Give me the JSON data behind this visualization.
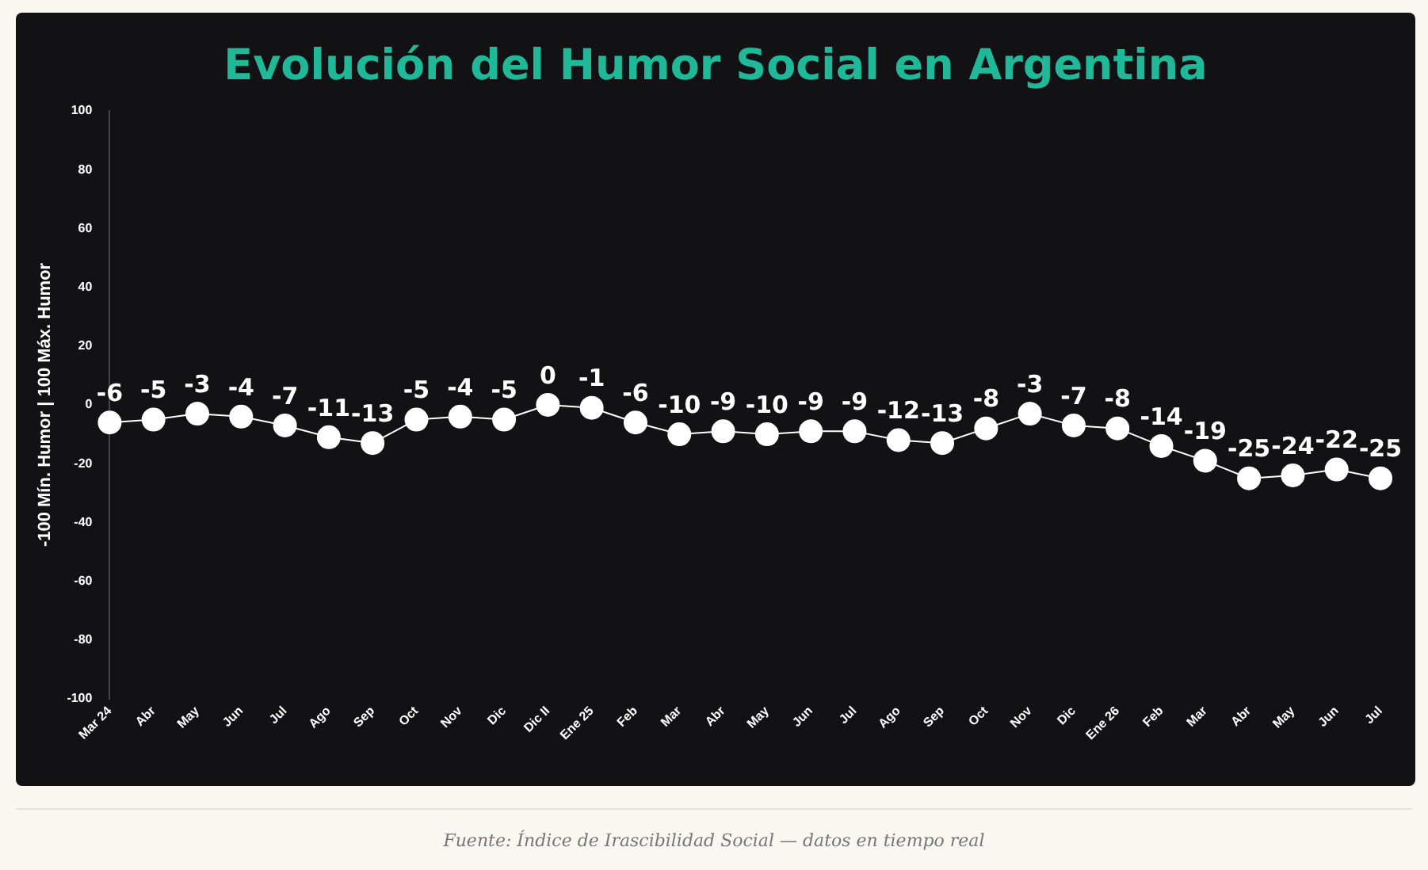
{
  "chart_data": {
    "type": "line",
    "title": "Evolución del Humor Social en Argentina",
    "ylabel": "-100 Mín. Humor | 100 Máx. Humor",
    "categories": [
      "Mar 24",
      "Abr",
      "May",
      "Jun",
      "Jul",
      "Ago",
      "Sep",
      "Oct",
      "Nov",
      "Dic",
      "Dic II",
      "Ene 25",
      "Feb",
      "Mar",
      "Abr",
      "May",
      "Jun",
      "Jul",
      "Ago",
      "Sep",
      "Oct",
      "Nov",
      "Dic",
      "Ene 26",
      "Feb",
      "Mar",
      "Abr",
      "May",
      "Jun",
      "Jul"
    ],
    "series": [
      {
        "color": "#ffffff",
        "values": [
          -6,
          -5,
          -3,
          -4,
          -7,
          -11,
          -13,
          -5,
          -4,
          -5,
          0,
          -1,
          -6,
          -10,
          -9,
          -10,
          -9,
          -9,
          -12,
          -13,
          -8,
          -3,
          -7,
          -8,
          -14,
          -19,
          -25,
          -24,
          -22,
          -25
        ]
      }
    ],
    "ylim": [
      -100,
      100
    ],
    "yticks": [
      -100,
      -80,
      -60,
      -40,
      -20,
      0,
      20,
      40,
      60,
      80,
      100
    ],
    "legend": false,
    "marker": "circle",
    "line_style": "solid",
    "data_labels": true,
    "annotations": [
      "Fuente: Índice de Irascibilidad Social — datos en tiempo real"
    ]
  }
}
